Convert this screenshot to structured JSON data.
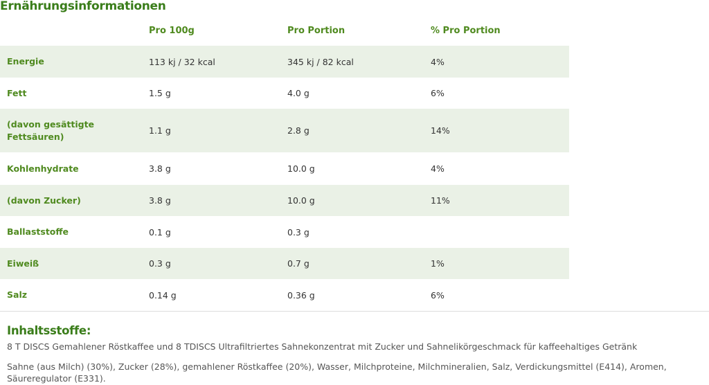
{
  "title": "Ernährungsinformationen",
  "table": {
    "headers": [
      "",
      "Pro 100g",
      "Pro Portion",
      "% Pro Portion"
    ],
    "rows": [
      {
        "name": "Energie",
        "per100": "113 kj / 32 kcal",
        "perPortion": "345 kj / 82 kcal",
        "pct": "4%"
      },
      {
        "name": "Fett",
        "per100": "1.5 g",
        "perPortion": "4.0 g",
        "pct": "6%"
      },
      {
        "name": "(davon gesättigte Fettsäuren)",
        "per100": "1.1 g",
        "perPortion": "2.8 g",
        "pct": "14%"
      },
      {
        "name": "Kohlenhydrate",
        "per100": "3.8 g",
        "perPortion": "10.0 g",
        "pct": "4%"
      },
      {
        "name": "(davon Zucker)",
        "per100": "3.8 g",
        "perPortion": "10.0 g",
        "pct": "11%"
      },
      {
        "name": "Ballaststoffe",
        "per100": "0.1 g",
        "perPortion": "0.3 g",
        "pct": ""
      },
      {
        "name": "Eiweiß",
        "per100": "0.3 g",
        "perPortion": "0.7 g",
        "pct": "1%"
      },
      {
        "name": "Salz",
        "per100": "0.14 g",
        "perPortion": "0.36 g",
        "pct": "6%"
      }
    ]
  },
  "ingredients": {
    "heading": "Inhaltsstoffe:",
    "line1": "8 T DISCS Gemahlener Röstkaffee und 8 TDISCS Ultrafiltriertes Sahnekonzentrat mit Zucker und Sahnelikörgeschmack für kaffeehaltiges Getränk",
    "line2": "Sahne (aus Milch) (30%), Zucker (28%), gemahlener Röstkaffee (20%), Wasser, Milchproteine, Milchmineralien, Salz, Verdickungsmittel (E414), Aromen, Säureregulator (E331)."
  },
  "colors": {
    "heading_green": "#3a7d1a",
    "label_green": "#4f8a1f",
    "row_shade": "#eaf1e6"
  }
}
